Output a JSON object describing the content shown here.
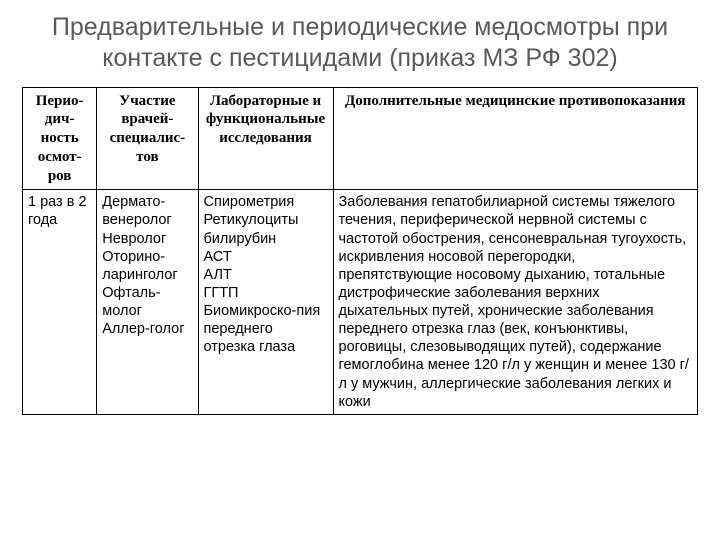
{
  "title": "Предварительные и периодические медосмотры при контакте с пестицидами (приказ МЗ РФ 302)",
  "table": {
    "columns": [
      "Перио-дич-ность осмот-ров",
      "Участие врачей-специалис-тов",
      "Лабораторные и функциональные исследования",
      "Дополнительные медицинские противопоказания"
    ],
    "rows": [
      {
        "period": "1 раз в 2 года",
        "specialists": "Дермато-венеролог\nНевролог\nОторино-ларинголог\nОфталь-молог\nАллер-голог",
        "labs": "Спирометрия\nРетикулоциты\nбилирубин\nАСТ\nАЛТ\nГГТП\nБиомикроско-пия переднего отрезка глаза",
        "contra": "Заболевания гепатобилиарной системы тяжелого течения, периферической нервной системы с частотой обострения, сенсоневральная тугоухость, искривления носовой перегородки, препятствующие носовому дыханию, тотальные дистрофические заболевания верхних дыхательных путей, хронические заболевания переднего отрезка глаз (век, конъюнктивы, роговицы, слезовыводящих путей), содержание гемоглобина менее 120 г/л у женщин и менее 130 г/л у мужчин, аллергические заболевания легких и кожи"
      }
    ]
  },
  "styles": {
    "title_color": "#595959",
    "title_fontsize": 25,
    "header_font": "Times New Roman",
    "header_fontsize": 15,
    "cell_fontsize": 14.5,
    "border_color": "#000000",
    "background_color": "#ffffff",
    "column_widths_pct": [
      11,
      15,
      20,
      54
    ]
  }
}
